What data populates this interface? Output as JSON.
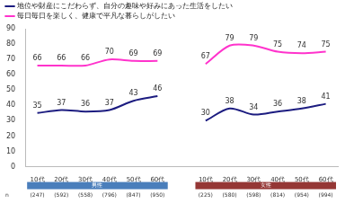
{
  "chart_data": {
    "type": "line",
    "categories": [
      "10代",
      "20代",
      "30代",
      "40代",
      "50代",
      "60代",
      null,
      "10代",
      "20代",
      "30代",
      "40代",
      "50代",
      "60代"
    ],
    "series": [
      {
        "name": "地位や財産にこだわらず、自分の趣味や好みにあった生活をしたい",
        "color": "#1c1c80",
        "values": [
          35,
          37,
          36,
          37,
          43,
          46,
          null,
          30,
          38,
          34,
          36,
          38,
          41
        ]
      },
      {
        "name": "毎日毎日を楽しく、健康で平凡な暮らしがしたい",
        "color": "#ff33cc",
        "values": [
          66,
          66,
          66,
          70,
          69,
          69,
          null,
          67,
          79,
          79,
          75,
          74,
          75
        ]
      }
    ],
    "ylim": [
      0,
      90
    ],
    "yticks": [
      0,
      10,
      20,
      30,
      40,
      50,
      60,
      70,
      80,
      90
    ],
    "grid": false,
    "legend": "top",
    "data_labels": true,
    "n_label": "n",
    "groups": [
      {
        "name": "男性",
        "color": "#4a7ebb",
        "n": [
          "(247)",
          "(592)",
          "(558)",
          "(796)",
          "(847)",
          "(950)"
        ]
      },
      {
        "name": "女性",
        "color": "#953735",
        "n": [
          "(225)",
          "(580)",
          "(598)",
          "(814)",
          "(954)",
          "(994)"
        ]
      }
    ]
  }
}
